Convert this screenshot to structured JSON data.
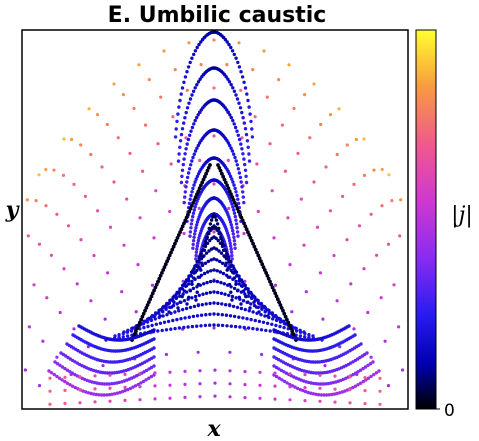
{
  "chart_data": {
    "type": "scatter",
    "title": "E. Umbilic caustic",
    "xlabel": "x",
    "ylabel": "y",
    "colorbar": {
      "label": "|j|",
      "tick_labels": [
        "0"
      ],
      "colormap": "plasma-like: black → blue → purple → magenta → orange → yellow"
    },
    "axes": {
      "xlim": [
        -1,
        1
      ],
      "ylim": [
        0,
        1
      ],
      "x_ticks_shown": false,
      "y_ticks_shown": false
    },
    "grid": false,
    "legend": "none",
    "description_of_points": "Dense point cloud forming a hyperbolic-umbilic caustic: a cusp-topped triangular region with nested arches above, intense (dark) along the caustic and fading to orange/yellow far from it.",
    "point_colors": {
      "low": "#000000",
      "mid_low": "#1010e0",
      "mid": "#9a2ff0",
      "mid_high": "#f050a0",
      "high": "#f5a030",
      "max": "#ffff20"
    }
  }
}
